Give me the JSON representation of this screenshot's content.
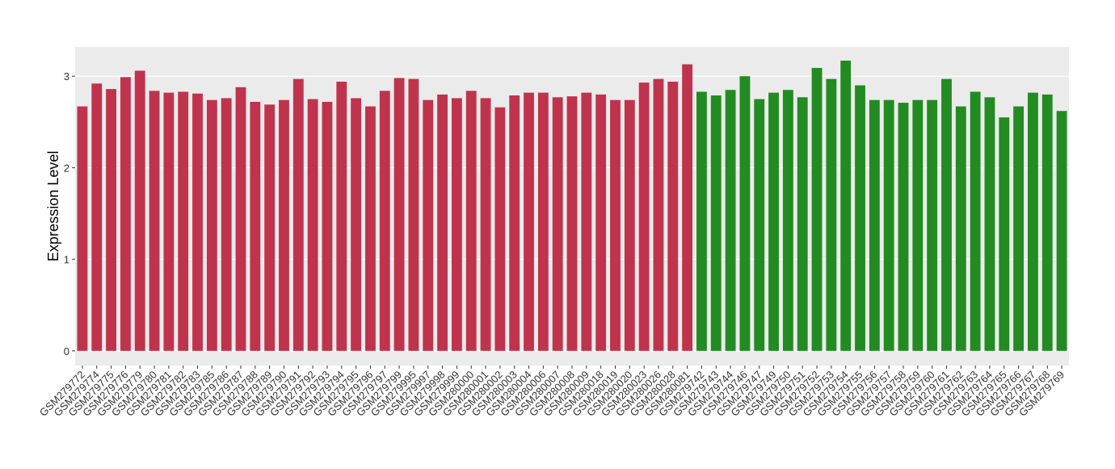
{
  "chart_data": {
    "type": "bar",
    "y_label": "Expression Level",
    "categories": [
      "GSM279772",
      "GSM279774",
      "GSM279775",
      "GSM279776",
      "GSM279779",
      "GSM279780",
      "GSM279781",
      "GSM279782",
      "GSM279783",
      "GSM279785",
      "GSM279786",
      "GSM279787",
      "GSM279788",
      "GSM279789",
      "GSM279790",
      "GSM279791",
      "GSM279792",
      "GSM279793",
      "GSM279794",
      "GSM279795",
      "GSM279796",
      "GSM279797",
      "GSM279799",
      "GSM279995",
      "GSM279997",
      "GSM279998",
      "GSM279999",
      "GSM280000",
      "GSM280001",
      "GSM280002",
      "GSM280003",
      "GSM280004",
      "GSM280006",
      "GSM280007",
      "GSM280008",
      "GSM280009",
      "GSM280018",
      "GSM280019",
      "GSM280020",
      "GSM280023",
      "GSM280026",
      "GSM280028",
      "GSM280081",
      "GSM279742",
      "GSM279743",
      "GSM279744",
      "GSM279746",
      "GSM279747",
      "GSM279749",
      "GSM279750",
      "GSM279751",
      "GSM279752",
      "GSM279753",
      "GSM279754",
      "GSM279755",
      "GSM279756",
      "GSM279757",
      "GSM279758",
      "GSM279759",
      "GSM279760",
      "GSM279761",
      "GSM279762",
      "GSM279763",
      "GSM279764",
      "GSM279765",
      "GSM279766",
      "GSM279767",
      "GSM279768",
      "GSM279769"
    ],
    "values": [
      2.67,
      2.92,
      2.86,
      2.99,
      3.06,
      2.84,
      2.82,
      2.83,
      2.81,
      2.74,
      2.76,
      2.88,
      2.72,
      2.69,
      2.74,
      2.97,
      2.75,
      2.72,
      2.94,
      2.76,
      2.67,
      2.84,
      2.98,
      2.97,
      2.74,
      2.8,
      2.76,
      2.84,
      2.76,
      2.66,
      2.79,
      2.82,
      2.82,
      2.77,
      2.78,
      2.82,
      2.8,
      2.74,
      2.74,
      2.93,
      2.97,
      2.94,
      3.13,
      2.83,
      2.79,
      2.85,
      3.0,
      2.75,
      2.82,
      2.85,
      2.77,
      3.09,
      2.97,
      3.17,
      2.9,
      2.74,
      2.74,
      2.71,
      2.74,
      2.74,
      2.97,
      2.67,
      2.83,
      2.77,
      2.55,
      2.67,
      2.82,
      2.8,
      2.62
    ],
    "colors": [
      "#c0334d",
      "#c0334d",
      "#c0334d",
      "#c0334d",
      "#c0334d",
      "#c0334d",
      "#c0334d",
      "#c0334d",
      "#c0334d",
      "#c0334d",
      "#c0334d",
      "#c0334d",
      "#c0334d",
      "#c0334d",
      "#c0334d",
      "#c0334d",
      "#c0334d",
      "#c0334d",
      "#c0334d",
      "#c0334d",
      "#c0334d",
      "#c0334d",
      "#c0334d",
      "#c0334d",
      "#c0334d",
      "#c0334d",
      "#c0334d",
      "#c0334d",
      "#c0334d",
      "#c0334d",
      "#c0334d",
      "#c0334d",
      "#c0334d",
      "#c0334d",
      "#c0334d",
      "#c0334d",
      "#c0334d",
      "#c0334d",
      "#c0334d",
      "#c0334d",
      "#c0334d",
      "#c0334d",
      "#c0334d",
      "#228b22",
      "#228b22",
      "#228b22",
      "#228b22",
      "#228b22",
      "#228b22",
      "#228b22",
      "#228b22",
      "#228b22",
      "#228b22",
      "#228b22",
      "#228b22",
      "#228b22",
      "#228b22",
      "#228b22",
      "#228b22",
      "#228b22",
      "#228b22",
      "#228b22",
      "#228b22",
      "#228b22",
      "#228b22",
      "#228b22",
      "#228b22",
      "#228b22",
      "#228b22"
    ],
    "ylim": [
      -0.16,
      3.32
    ],
    "yticks": [
      0,
      1,
      2,
      3
    ],
    "grid": true
  }
}
